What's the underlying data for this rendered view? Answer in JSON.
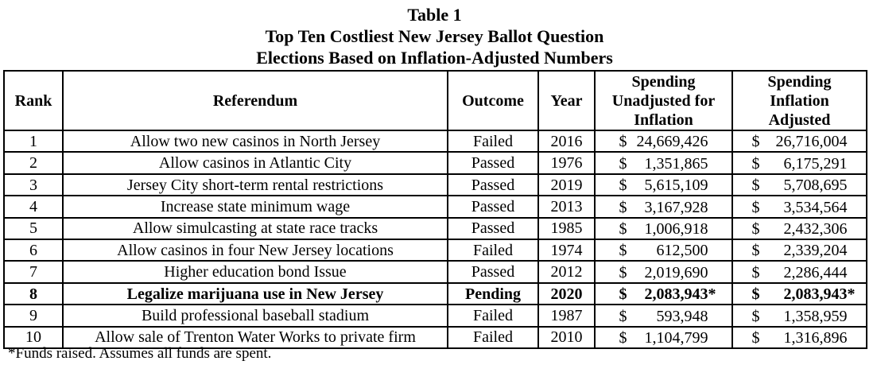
{
  "page": {
    "background_color": "#ffffff",
    "text_color": "#000000",
    "border_color": "#000000"
  },
  "title": {
    "line1": "Table 1",
    "line2": "Top Ten Costliest New Jersey Ballot Question",
    "line3": "Elections Based on Inflation-Adjusted Numbers"
  },
  "table": {
    "currency_symbol": "$",
    "star_symbol": "*",
    "header": {
      "rank": "Rank",
      "referendum": "Referendum",
      "outcome": "Outcome",
      "year": "Year",
      "spending_unadjusted_lines": [
        "Spending",
        "Unadjusted for",
        "Inflation"
      ],
      "spending_adjusted_lines": [
        "Spending",
        "Inflation",
        "Adjusted"
      ]
    },
    "rows": [
      {
        "rank": "1",
        "referendum": "Allow two new casinos in North Jersey",
        "outcome": "Failed",
        "year": "2016",
        "bold": false,
        "spending_unadjusted": {
          "amount": "24,669,426",
          "star": false
        },
        "spending_adjusted": {
          "amount": "26,716,004",
          "star": false
        }
      },
      {
        "rank": "2",
        "referendum": "Allow casinos in Atlantic City",
        "outcome": "Passed",
        "year": "1976",
        "bold": false,
        "spending_unadjusted": {
          "amount": "1,351,865",
          "star": false
        },
        "spending_adjusted": {
          "amount": "6,175,291",
          "star": false
        }
      },
      {
        "rank": "3",
        "referendum": "Jersey City short-term rental restrictions",
        "outcome": "Passed",
        "year": "2019",
        "bold": false,
        "spending_unadjusted": {
          "amount": "5,615,109",
          "star": false
        },
        "spending_adjusted": {
          "amount": "5,708,695",
          "star": false
        }
      },
      {
        "rank": "4",
        "referendum": "Increase state minimum wage",
        "outcome": "Passed",
        "year": "2013",
        "bold": false,
        "spending_unadjusted": {
          "amount": "3,167,928",
          "star": false
        },
        "spending_adjusted": {
          "amount": "3,534,564",
          "star": false
        }
      },
      {
        "rank": "5",
        "referendum": "Allow simulcasting at state race tracks",
        "outcome": "Passed",
        "year": "1985",
        "bold": false,
        "spending_unadjusted": {
          "amount": "1,006,918",
          "star": false
        },
        "spending_adjusted": {
          "amount": "2,432,306",
          "star": false
        }
      },
      {
        "rank": "6",
        "referendum": "Allow casinos in four New Jersey locations",
        "outcome": "Failed",
        "year": "1974",
        "bold": false,
        "spending_unadjusted": {
          "amount": "612,500",
          "star": false
        },
        "spending_adjusted": {
          "amount": "2,339,204",
          "star": false
        }
      },
      {
        "rank": "7",
        "referendum": "Higher education bond Issue",
        "outcome": "Passed",
        "year": "2012",
        "bold": false,
        "spending_unadjusted": {
          "amount": "2,019,690",
          "star": false
        },
        "spending_adjusted": {
          "amount": "2,286,444",
          "star": false
        }
      },
      {
        "rank": "8",
        "referendum": "Legalize marijuana use in New Jersey",
        "outcome": "Pending",
        "year": "2020",
        "bold": true,
        "spending_unadjusted": {
          "amount": "2,083,943",
          "star": true
        },
        "spending_adjusted": {
          "amount": "2,083,943",
          "star": true
        }
      },
      {
        "rank": "9",
        "referendum": "Build professional baseball stadium",
        "outcome": "Failed",
        "year": "1987",
        "bold": false,
        "spending_unadjusted": {
          "amount": "593,948",
          "star": false
        },
        "spending_adjusted": {
          "amount": "1,358,959",
          "star": false
        }
      },
      {
        "rank": "10",
        "referendum": "Allow sale of Trenton Water Works to private firm",
        "outcome": "Failed",
        "year": "2010",
        "bold": false,
        "spending_unadjusted": {
          "amount": "1,104,799",
          "star": false
        },
        "spending_adjusted": {
          "amount": "1,316,896",
          "star": false
        }
      }
    ]
  },
  "footnote": "*Funds raised. Assumes all funds are spent."
}
